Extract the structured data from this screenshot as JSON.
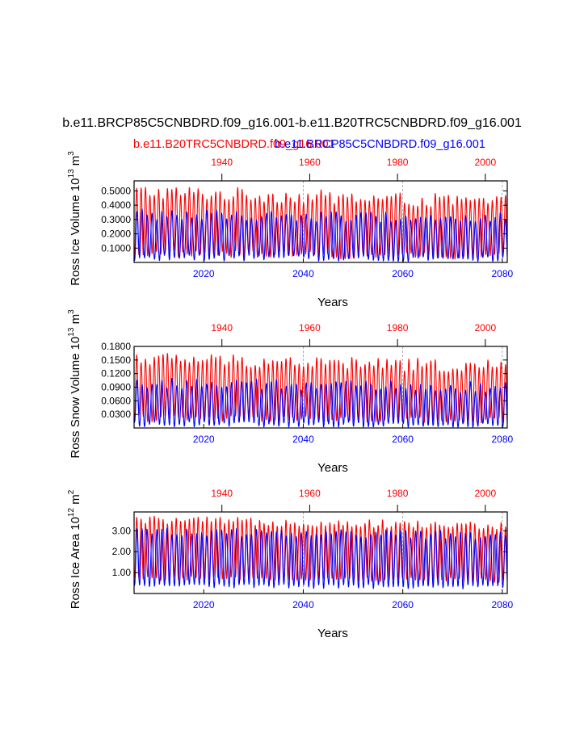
{
  "figure": {
    "title": "b.e11.BRCP85C5CNBDRD.f09_g16.001-b.e11.B20TRC5CNBDRD.f09_g16.001",
    "legend": {
      "red_case": "b.e11.B20TRC5CNBDRD.f09_g16.001",
      "blue_case": "b.e11.BRCP85C5CNBDRD.f09_g16.001"
    },
    "colors": {
      "red": "#ff0000",
      "blue": "#0000ff",
      "ref_line": "#999999"
    }
  },
  "chart_data": [
    {
      "type": "line",
      "id": "ice-volume",
      "ylabel_main": "Ross Ice Volume 10",
      "ylabel_exp": "13",
      "ylabel_unit": " m",
      "ylabel_unit_exp": "3",
      "xlabel": "Years",
      "ylim": [
        0.0,
        0.57
      ],
      "yticks": [
        0.1,
        0.2,
        0.3,
        0.4,
        0.5
      ],
      "ytick_labels": [
        "0.1000",
        "0.2000",
        "0.3000",
        "0.4000",
        "0.5000"
      ],
      "bottom_x": {
        "range": [
          2006,
          2081
        ],
        "ticks": [
          2020,
          2040,
          2060,
          2080
        ],
        "labels": [
          "2020",
          "2040",
          "2060",
          "2080"
        ]
      },
      "top_x": {
        "range": [
          1920,
          2005
        ],
        "ticks": [
          1940,
          1960,
          1980,
          2000
        ],
        "labels": [
          "1940",
          "1960",
          "1980",
          "2000"
        ]
      },
      "ref_lines_bottom_years": [
        2040,
        2060,
        2080
      ],
      "series": [
        {
          "name": "b.e11.B20TRC5CNBDRD.f09_g16.001",
          "color": "#ff0000",
          "axis": "top",
          "min": 0.06,
          "max": 0.5,
          "jitter": 0.05,
          "trend": -0.08
        },
        {
          "name": "b.e11.BRCP85C5CNBDRD.f09_g16.001",
          "color": "#0000ff",
          "axis": "bottom",
          "min": 0.03,
          "max": 0.34,
          "jitter": 0.04,
          "trend": -0.03
        }
      ]
    },
    {
      "type": "line",
      "id": "snow-volume",
      "ylabel_main": "Ross Snow Volume 10",
      "ylabel_exp": "13",
      "ylabel_unit": " m",
      "ylabel_unit_exp": "3",
      "xlabel": "Years",
      "ylim": [
        0.0,
        0.18
      ],
      "yticks": [
        0.03,
        0.06,
        0.09,
        0.12,
        0.15,
        0.18
      ],
      "ytick_labels": [
        "0.0300",
        "0.0600",
        "0.0900",
        "0.1200",
        "0.1500",
        "0.1800"
      ],
      "bottom_x": {
        "range": [
          2006,
          2081
        ],
        "ticks": [
          2020,
          2040,
          2060,
          2080
        ],
        "labels": [
          "2020",
          "2040",
          "2060",
          "2080"
        ]
      },
      "top_x": {
        "range": [
          1920,
          2005
        ],
        "ticks": [
          1940,
          1960,
          1980,
          2000
        ],
        "labels": [
          "1940",
          "1960",
          "1980",
          "2000"
        ]
      },
      "ref_lines_bottom_years": [
        2040,
        2060,
        2080
      ],
      "series": [
        {
          "name": "b.e11.B20TRC5CNBDRD.f09_g16.001",
          "color": "#ff0000",
          "axis": "top",
          "min": 0.02,
          "max": 0.155,
          "jitter": 0.015,
          "trend": -0.02
        },
        {
          "name": "b.e11.BRCP85C5CNBDRD.f09_g16.001",
          "color": "#0000ff",
          "axis": "bottom",
          "min": 0.008,
          "max": 0.1,
          "jitter": 0.012,
          "trend": -0.01
        }
      ]
    },
    {
      "type": "line",
      "id": "ice-area",
      "ylabel_main": "Ross Ice Area 10",
      "ylabel_exp": "12",
      "ylabel_unit": " m",
      "ylabel_unit_exp": "2",
      "xlabel": "Years",
      "ylim": [
        0.0,
        3.9
      ],
      "yticks": [
        1.0,
        2.0,
        3.0
      ],
      "ytick_labels": [
        "1.00",
        "2.00",
        "3.00"
      ],
      "bottom_x": {
        "range": [
          2006,
          2081
        ],
        "ticks": [
          2020,
          2040,
          2060,
          2080
        ],
        "labels": [
          "2020",
          "2040",
          "2060",
          "2080"
        ]
      },
      "top_x": {
        "range": [
          1920,
          2005
        ],
        "ticks": [
          1940,
          1960,
          1980,
          2000
        ],
        "labels": [
          "1940",
          "1960",
          "1980",
          "2000"
        ]
      },
      "ref_lines_bottom_years": [
        2040,
        2060,
        2080
      ],
      "series": [
        {
          "name": "b.e11.B20TRC5CNBDRD.f09_g16.001",
          "color": "#ff0000",
          "axis": "top",
          "min": 0.7,
          "max": 3.55,
          "jitter": 0.2,
          "trend": -0.3
        },
        {
          "name": "b.e11.BRCP85C5CNBDRD.f09_g16.001",
          "color": "#0000ff",
          "axis": "bottom",
          "min": 0.35,
          "max": 3.0,
          "jitter": 0.2,
          "trend": -0.2
        }
      ]
    }
  ]
}
